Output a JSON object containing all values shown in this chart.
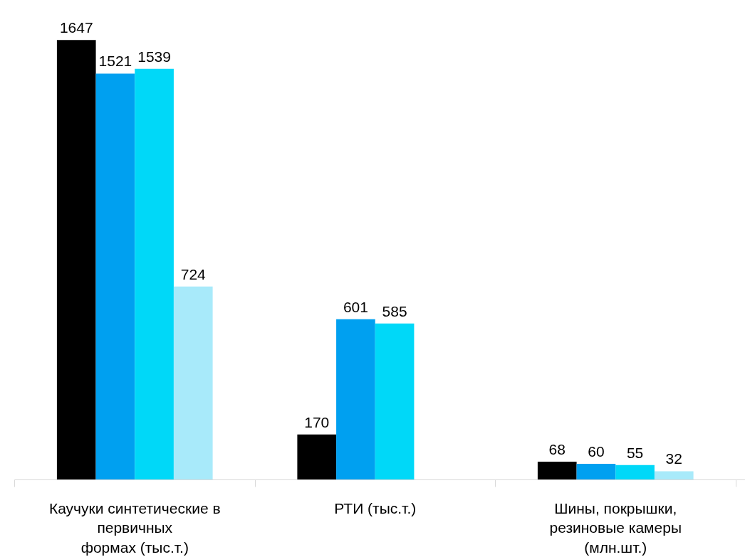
{
  "chart_data": {
    "type": "bar",
    "categories": [
      "Каучуки синтетические в\nпервичных\nформах (тыс.т.)",
      "РТИ (тыс.т.)",
      "Шины, покрышки,\nрезиновые камеры\n(млн.шт.)"
    ],
    "series": [
      {
        "color": "#000000",
        "values": [
          1647,
          170,
          68
        ]
      },
      {
        "color": "#00a0f0",
        "values": [
          1521,
          601,
          60
        ]
      },
      {
        "color": "#00d8f8",
        "values": [
          1539,
          585,
          55
        ]
      },
      {
        "color": "#a8eafa",
        "values": [
          724,
          null,
          32
        ]
      }
    ],
    "data_labels": true,
    "grid": false
  }
}
